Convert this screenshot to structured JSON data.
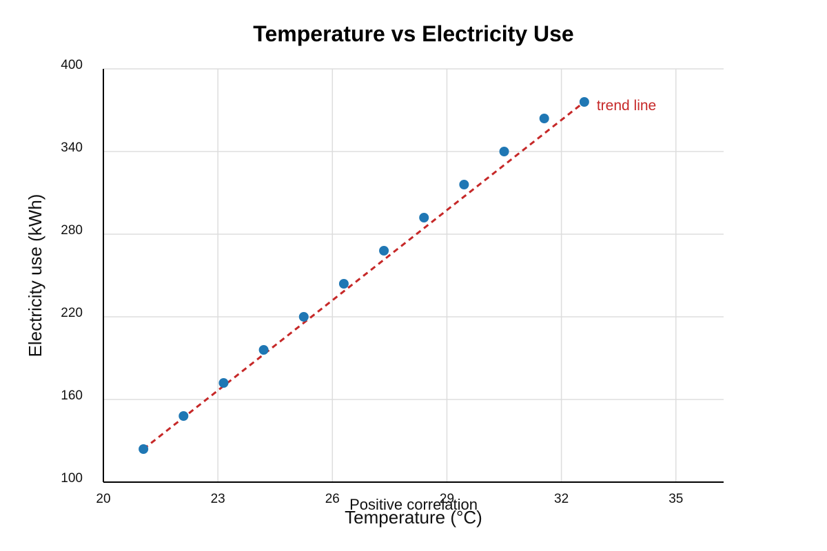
{
  "chart_data": {
    "type": "scatter",
    "title": "Temperature vs Electricity Use",
    "xlabel": "Temperature (°C)",
    "ylabel": "Electricity use (kWh)",
    "xlim": [
      20,
      36.25
    ],
    "ylim": [
      100,
      400
    ],
    "xticks": [
      20,
      23,
      26,
      29,
      32,
      35
    ],
    "yticks": [
      100,
      160,
      220,
      280,
      340,
      400
    ],
    "grid": true,
    "series": [
      {
        "x": [
          21.05,
          22.1,
          23.15,
          24.2,
          25.25,
          26.3,
          27.35,
          28.4,
          29.45,
          30.5,
          31.55,
          32.6
        ],
        "y": [
          124,
          148,
          172,
          196,
          220,
          244,
          268,
          292,
          316,
          340,
          364,
          376
        ],
        "color": "#1f77b4"
      }
    ],
    "trend_line": {
      "label": "trend line",
      "x": [
        21.05,
        32.6
      ],
      "y": [
        124,
        376
      ],
      "color": "#c62828",
      "style": "dashed"
    },
    "annotations": [
      {
        "text": "Positive correlation"
      }
    ]
  }
}
